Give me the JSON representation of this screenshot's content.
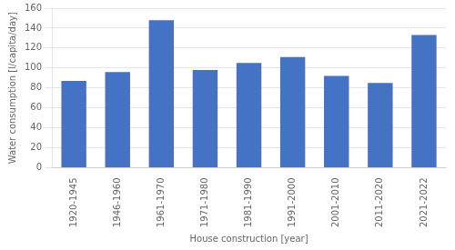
{
  "chart_data": {
    "type": "bar",
    "categories": [
      "1920-1945",
      "1946-1960",
      "1961-1970",
      "1971-1980",
      "1981-1990",
      "1991-2000",
      "2001-2010",
      "2011-2020",
      "2021-2022"
    ],
    "values": [
      87,
      96,
      148,
      98,
      105,
      111,
      92,
      85,
      133
    ],
    "color": "#4472C4",
    "xlabel": "House construction [year]",
    "ylabel": "Water consumption [l/capita/day]",
    "ylim": [
      0,
      160
    ],
    "yticks": [
      0,
      20,
      40,
      60,
      80,
      100,
      120,
      140,
      160
    ],
    "grid": true
  }
}
